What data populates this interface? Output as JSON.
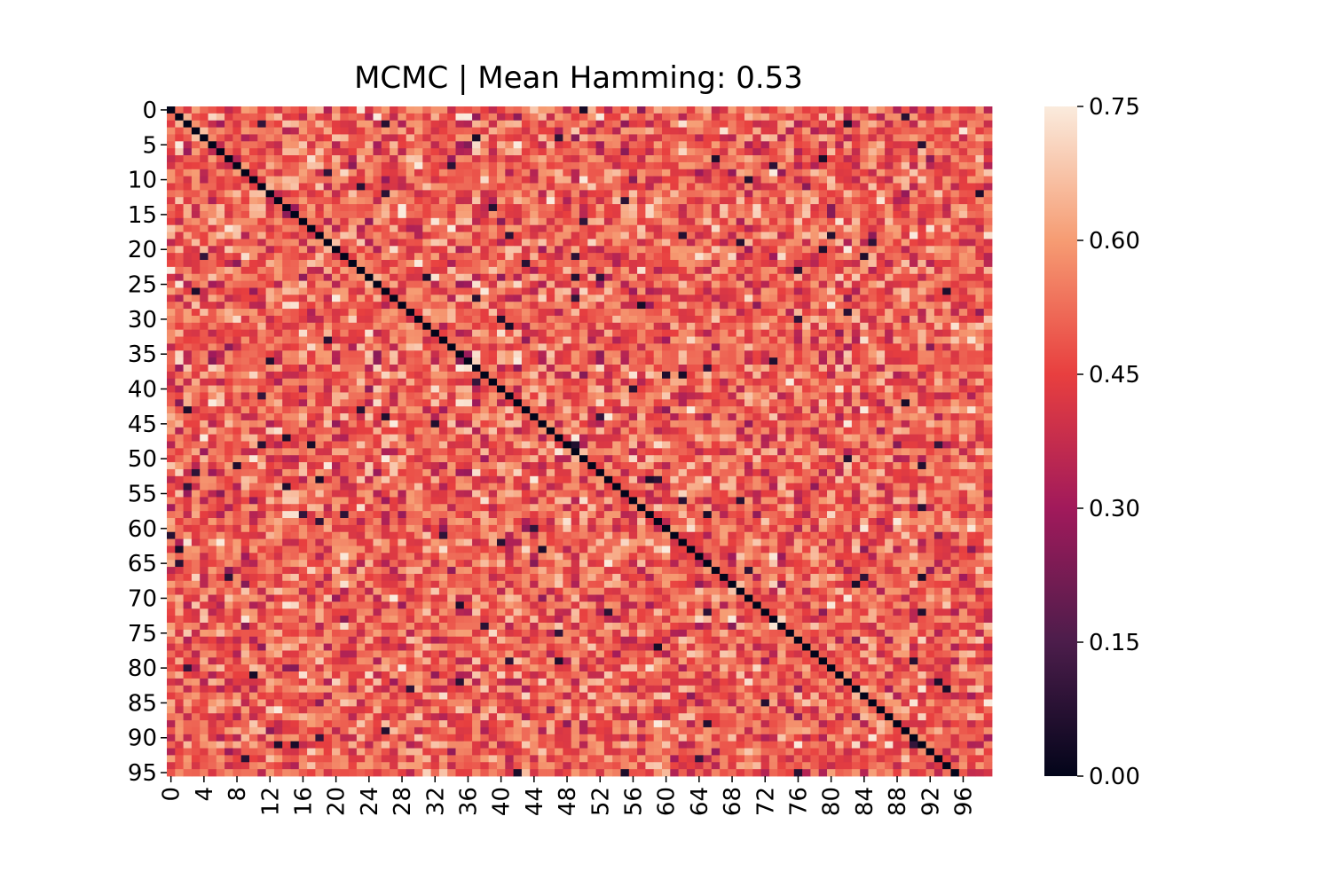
{
  "chart_data": {
    "type": "heatmap",
    "title": "MCMC | Mean Hamming: 0.53",
    "xlabel": "",
    "ylabel": "",
    "n_rows": 96,
    "n_cols": 100,
    "x_tick_labels": [
      "0",
      "4",
      "8",
      "12",
      "16",
      "20",
      "24",
      "28",
      "32",
      "36",
      "40",
      "44",
      "48",
      "52",
      "56",
      "60",
      "64",
      "68",
      "72",
      "76",
      "80",
      "84",
      "88",
      "92",
      "96"
    ],
    "x_tick_step": 4,
    "y_tick_labels": [
      "0",
      "5",
      "10",
      "15",
      "20",
      "25",
      "30",
      "35",
      "40",
      "45",
      "50",
      "55",
      "60",
      "65",
      "70",
      "75",
      "80",
      "85",
      "90",
      "95"
    ],
    "y_tick_step": 5,
    "colorbar": {
      "min": 0.0,
      "max": 0.75,
      "tick_values": [
        0.0,
        0.15,
        0.3,
        0.45,
        0.6,
        0.75
      ],
      "tick_labels": [
        "0.00",
        "0.15",
        "0.30",
        "0.45",
        "0.60",
        "0.75"
      ]
    },
    "mean_value": 0.53,
    "diagonal_value": 0.0,
    "colormap_stops": [
      "#03051a",
      "#4c1d4b",
      "#a11a5b",
      "#e83f3f",
      "#f69c73",
      "#faebdd"
    ]
  }
}
